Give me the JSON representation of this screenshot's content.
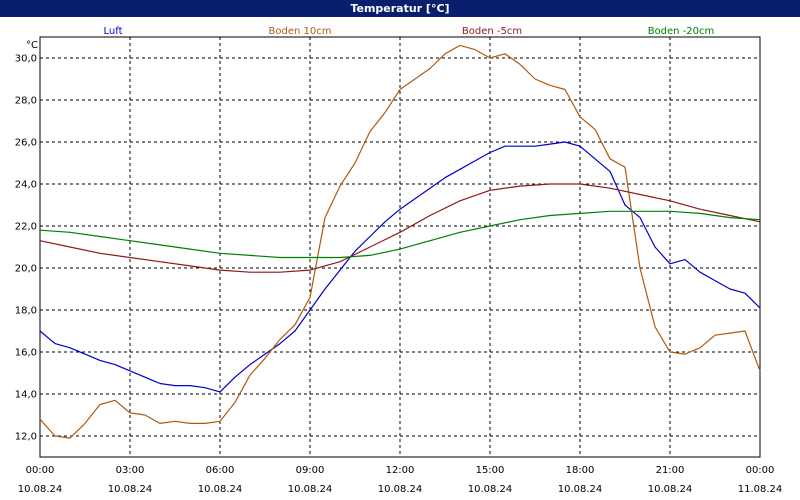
{
  "window": {
    "title": "Temperatur [°C]"
  },
  "chart_data": {
    "type": "line",
    "title": "Temperatur [°C]",
    "ylabel": "°C",
    "ylim": [
      11.0,
      31.0
    ],
    "xlim_hours": [
      0,
      24
    ],
    "grid": true,
    "legend_placement": "top",
    "yticks": [
      "12,0",
      "14,0",
      "16,0",
      "18,0",
      "20,0",
      "22,0",
      "24,0",
      "26,0",
      "28,0",
      "30,0"
    ],
    "xticks": [
      {
        "time": "00:00",
        "date": "10.08.24"
      },
      {
        "time": "03:00",
        "date": "10.08.24"
      },
      {
        "time": "06:00",
        "date": "10.08.24"
      },
      {
        "time": "09:00",
        "date": "10.08.24"
      },
      {
        "time": "12:00",
        "date": "10.08.24"
      },
      {
        "time": "15:00",
        "date": "10.08.24"
      },
      {
        "time": "18:00",
        "date": "10.08.24"
      },
      {
        "time": "21:00",
        "date": "10.08.24"
      },
      {
        "time": "00:00",
        "date": "11.08.24"
      }
    ],
    "series": [
      {
        "name": "Luft",
        "color": "#0000cc",
        "x": [
          0,
          0.5,
          1,
          1.5,
          2,
          2.5,
          3,
          3.5,
          4,
          4.5,
          5,
          5.5,
          6,
          6.5,
          7,
          7.5,
          8,
          8.5,
          9,
          9.5,
          10,
          10.5,
          11,
          11.5,
          12,
          12.5,
          13,
          13.5,
          14,
          14.5,
          15,
          15.5,
          16,
          16.5,
          17,
          17.5,
          18,
          18.5,
          19,
          19.5,
          20,
          20.5,
          21,
          21.5,
          22,
          22.5,
          23,
          23.5,
          24
        ],
        "y": [
          17.0,
          16.4,
          16.2,
          15.9,
          15.6,
          15.4,
          15.1,
          14.8,
          14.5,
          14.4,
          14.4,
          14.3,
          14.1,
          14.8,
          15.4,
          15.9,
          16.4,
          17.0,
          18.0,
          19.0,
          19.9,
          20.8,
          21.5,
          22.2,
          22.8,
          23.3,
          23.8,
          24.3,
          24.7,
          25.1,
          25.5,
          25.8,
          25.8,
          25.8,
          25.9,
          26.0,
          25.8,
          25.2,
          24.6,
          23.0,
          22.4,
          21.0,
          20.2,
          20.4,
          19.8,
          19.4,
          19.0,
          18.8,
          18.1
        ]
      },
      {
        "name": "Boden 10cm",
        "color": "#b05a10",
        "x": [
          0,
          0.5,
          1,
          1.5,
          2,
          2.5,
          3,
          3.5,
          4,
          4.5,
          5,
          5.5,
          6,
          6.5,
          7,
          7.5,
          8,
          8.5,
          9,
          9.5,
          10,
          10.5,
          11,
          11.5,
          12,
          12.5,
          13,
          13.5,
          14,
          14.5,
          15,
          15.5,
          16,
          16.5,
          17,
          17.5,
          18,
          18.5,
          19,
          19.5,
          20,
          20.5,
          21,
          21.5,
          22,
          22.5,
          23,
          23.5,
          24
        ],
        "y": [
          12.8,
          12.0,
          11.9,
          12.6,
          13.5,
          13.7,
          13.1,
          13.0,
          12.6,
          12.7,
          12.6,
          12.6,
          12.7,
          13.6,
          14.9,
          15.7,
          16.6,
          17.3,
          18.6,
          22.4,
          23.9,
          25.0,
          26.5,
          27.4,
          28.5,
          29.0,
          29.5,
          30.2,
          30.6,
          30.4,
          30.0,
          30.2,
          29.7,
          29.0,
          28.7,
          28.5,
          27.2,
          26.6,
          25.2,
          24.8,
          20.0,
          17.2,
          16.0,
          15.9,
          16.2,
          16.8,
          16.9,
          17.0,
          15.1
        ]
      },
      {
        "name": "Boden -5cm",
        "color": "#8b1a1a",
        "x": [
          0,
          1,
          2,
          3,
          4,
          5,
          6,
          7,
          8,
          9,
          10,
          11,
          12,
          13,
          14,
          15,
          16,
          17,
          18,
          19,
          20,
          21,
          22,
          23,
          24
        ],
        "y": [
          21.3,
          21.0,
          20.7,
          20.5,
          20.3,
          20.1,
          19.9,
          19.8,
          19.8,
          19.9,
          20.3,
          21.0,
          21.7,
          22.5,
          23.2,
          23.7,
          23.9,
          24.0,
          24.0,
          23.8,
          23.5,
          23.2,
          22.8,
          22.5,
          22.2
        ]
      },
      {
        "name": "Boden -20cm",
        "color": "#008000",
        "x": [
          0,
          1,
          2,
          3,
          4,
          5,
          6,
          7,
          8,
          9,
          10,
          11,
          12,
          13,
          14,
          15,
          16,
          17,
          18,
          19,
          20,
          21,
          22,
          23,
          24
        ],
        "y": [
          21.8,
          21.7,
          21.5,
          21.3,
          21.1,
          20.9,
          20.7,
          20.6,
          20.5,
          20.5,
          20.5,
          20.6,
          20.9,
          21.3,
          21.7,
          22.0,
          22.3,
          22.5,
          22.6,
          22.7,
          22.7,
          22.7,
          22.6,
          22.4,
          22.3
        ]
      }
    ]
  }
}
